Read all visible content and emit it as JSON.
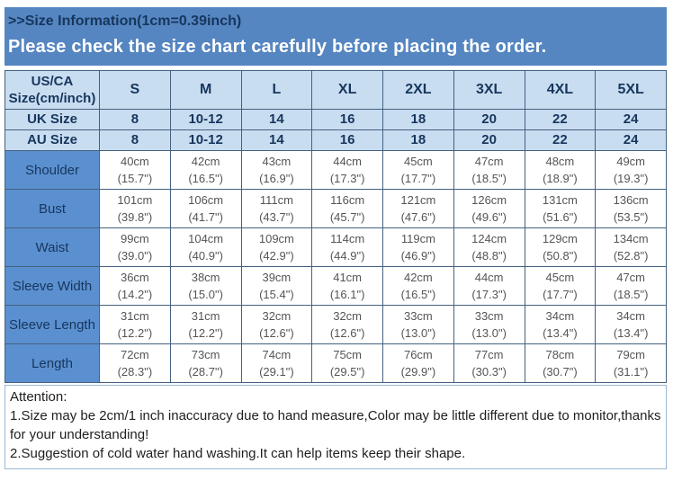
{
  "header": {
    "title": ">>Size Information(1cm=0.39inch)",
    "subtitle": "Please check the size chart carefully before placing the order."
  },
  "table": {
    "corner_line1": "US/CA",
    "corner_line2": "Size(cm/inch)",
    "size_columns": [
      "S",
      "M",
      "L",
      "XL",
      "2XL",
      "3XL",
      "4XL",
      "5XL"
    ],
    "size_rows": [
      {
        "label": "UK Size",
        "values": [
          "8",
          "10-12",
          "14",
          "16",
          "18",
          "20",
          "22",
          "24"
        ]
      },
      {
        "label": "AU Size",
        "values": [
          "8",
          "10-12",
          "14",
          "16",
          "18",
          "20",
          "22",
          "24"
        ]
      }
    ],
    "measurement_rows": [
      {
        "label": "Shoulder",
        "cm": [
          "40cm",
          "42cm",
          "43cm",
          "44cm",
          "45cm",
          "47cm",
          "48cm",
          "49cm"
        ],
        "inch": [
          "(15.7\")",
          "(16.5\")",
          "(16.9\")",
          "(17.3\")",
          "(17.7\")",
          "(18.5\")",
          "(18.9\")",
          "(19.3\")"
        ]
      },
      {
        "label": "Bust",
        "cm": [
          "101cm",
          "106cm",
          "111cm",
          "116cm",
          "121cm",
          "126cm",
          "131cm",
          "136cm"
        ],
        "inch": [
          "(39.8\")",
          "(41.7\")",
          "(43.7\")",
          "(45.7\")",
          "(47.6\")",
          "(49.6\")",
          "(51.6\")",
          "(53.5\")"
        ]
      },
      {
        "label": "Waist",
        "cm": [
          "99cm",
          "104cm",
          "109cm",
          "114cm",
          "119cm",
          "124cm",
          "129cm",
          "134cm"
        ],
        "inch": [
          "(39.0\")",
          "(40.9\")",
          "(42.9\")",
          "(44.9\")",
          "(46.9\")",
          "(48.8\")",
          "(50.8\")",
          "(52.8\")"
        ]
      },
      {
        "label": "Sleeve Width",
        "cm": [
          "36cm",
          "38cm",
          "39cm",
          "41cm",
          "42cm",
          "44cm",
          "45cm",
          "47cm"
        ],
        "inch": [
          "(14.2\")",
          "(15.0\")",
          "(15.4\")",
          "(16.1\")",
          "(16.5\")",
          "(17.3\")",
          "(17.7\")",
          "(18.5\")"
        ]
      },
      {
        "label": "Sleeve Length",
        "cm": [
          "31cm",
          "31cm",
          "32cm",
          "32cm",
          "33cm",
          "33cm",
          "34cm",
          "34cm"
        ],
        "inch": [
          "(12.2\")",
          "(12.2\")",
          "(12.6\")",
          "(12.6\")",
          "(13.0\")",
          "(13.0\")",
          "(13.4\")",
          "(13.4\")"
        ]
      },
      {
        "label": "Length",
        "cm": [
          "72cm",
          "73cm",
          "74cm",
          "75cm",
          "76cm",
          "77cm",
          "78cm",
          "79cm"
        ],
        "inch": [
          "(28.3\")",
          "(28.7\")",
          "(29.1\")",
          "(29.5\")",
          "(29.9\")",
          "(30.3\")",
          "(30.7\")",
          "(31.1\")"
        ]
      }
    ]
  },
  "attention": {
    "heading": "Attention:",
    "note1": "1.Size may be 2cm/1 inch inaccuracy due to hand measure,Color may be little different due to monitor,thanks for your understanding!",
    "note2": "2.Suggestion of cold water hand washing.It can help items keep their shape."
  },
  "colors": {
    "banner_blue": "#5586c1",
    "label_cell_blue": "#5b90d0",
    "header_light_blue": "#c9ddf1",
    "table_border": "#44617f",
    "navy_text": "#17365d",
    "data_text_gray": "#555555"
  }
}
